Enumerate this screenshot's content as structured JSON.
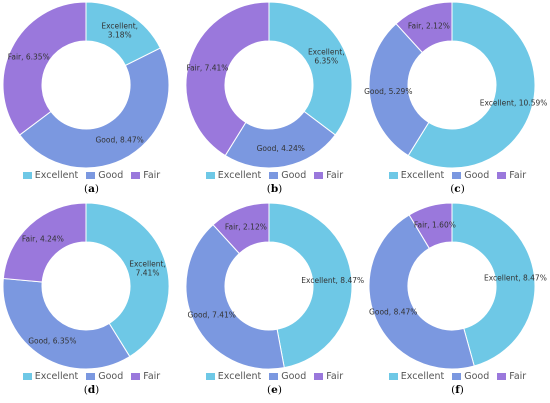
{
  "colors": {
    "Excellent": "#6ec8e6",
    "Good": "#7b98e0",
    "Fair": "#9a78dc"
  },
  "chart_data": [
    {
      "type": "pie",
      "panel": "a",
      "legend": [
        "Excellent",
        "Good",
        "Fair"
      ],
      "slices": [
        {
          "name": "Excellent",
          "value": 3.18,
          "label": "Excellent, 3.18%"
        },
        {
          "name": "Good",
          "value": 8.47,
          "label": "Good, 8.47%"
        },
        {
          "name": "Fair",
          "value": 6.35,
          "label": "Fair, 6.35%"
        }
      ]
    },
    {
      "type": "pie",
      "panel": "b",
      "legend": [
        "Excellent",
        "Good",
        "Fair"
      ],
      "slices": [
        {
          "name": "Excellent",
          "value": 6.35,
          "label": "Excellent, 6.35%"
        },
        {
          "name": "Good",
          "value": 4.24,
          "label": "Good, 4.24%"
        },
        {
          "name": "Fair",
          "value": 7.41,
          "label": "Fair, 7.41%"
        }
      ]
    },
    {
      "type": "pie",
      "panel": "c",
      "legend": [
        "Excellent",
        "Good",
        "Fair"
      ],
      "slices": [
        {
          "name": "Excellent",
          "value": 10.59,
          "label": "Excellent, 10.59%"
        },
        {
          "name": "Good",
          "value": 5.29,
          "label": "Good, 5.29%"
        },
        {
          "name": "Fair",
          "value": 2.12,
          "label": "Fair, 2.12%"
        }
      ]
    },
    {
      "type": "pie",
      "panel": "d",
      "legend": [
        "Excellent",
        "Good",
        "Fair"
      ],
      "slices": [
        {
          "name": "Excellent",
          "value": 7.41,
          "label": "Excellent, 7.41%"
        },
        {
          "name": "Good",
          "value": 6.35,
          "label": "Good, 6.35%"
        },
        {
          "name": "Fair",
          "value": 4.24,
          "label": "Fair, 4.24%"
        }
      ]
    },
    {
      "type": "pie",
      "panel": "e",
      "legend": [
        "Excellent",
        "Good",
        "Fair"
      ],
      "slices": [
        {
          "name": "Excellent",
          "value": 8.47,
          "label": "Excellent, 8.47%"
        },
        {
          "name": "Good",
          "value": 7.41,
          "label": "Good, 7.41%"
        },
        {
          "name": "Fair",
          "value": 2.12,
          "label": "Fair, 2.12%"
        }
      ]
    },
    {
      "type": "pie",
      "panel": "f",
      "legend": [
        "Excellent",
        "Good",
        "Fair"
      ],
      "slices": [
        {
          "name": "Excellent",
          "value": 8.47,
          "label": "Excellent, 8.47%"
        },
        {
          "name": "Good",
          "value": 8.47,
          "label": "Good, 8.47%"
        },
        {
          "name": "Fair",
          "value": 1.6,
          "label": "Fair, 1.60%"
        }
      ]
    }
  ]
}
